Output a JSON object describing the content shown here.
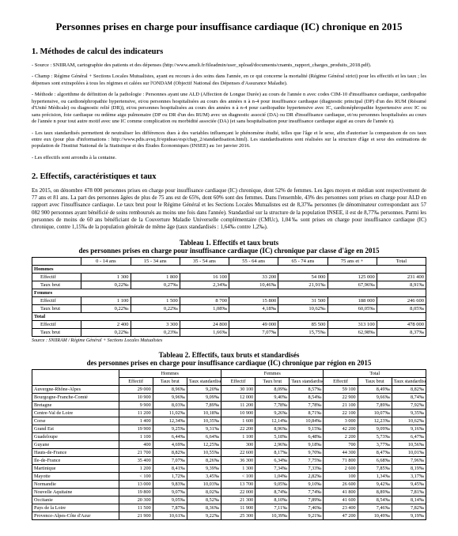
{
  "page_title": "Personnes prises en charge pour insuffisance cardiaque (IC) chronique en 2015",
  "sections": {
    "s1_title": "1. Méthodes de calcul des indicateurs",
    "s1_p1": "- Source : SNIIRAM, cartographie des patients et des dépenses (http://www.ameli.fr/fileadmin/user_upload/documents/cnamts_rapport_charges_produits_2018.pdf).",
    "s1_p2": "- Champ : Régime Général + Sections Locales Mutualistes, ayant eu recours à des soins dans l'année, en ce qui concerne la mortalité (Régime Général strict) pour les effectifs et les taux ; les dépenses sont extrapolées à tous les régimes et calées sur l'ONDAM (Objectif National des Dépenses d'Assurance Maladie).",
    "s1_p3": "- Méthode : algorithme de définition de la pathologie : Personnes ayant une ALD (Affection de Longue Durée) au cours de l'année n avec codes CIM-10 d'insuffisance cardiaque, cardiopathie hypertensive, ou cardionéphropathie hypertensive, et/ou personnes hospitalisées au cours des années n à n-4 pour insuffisance cardiaque (diagnostic principal (DP) d'un des RUM (Résumé d'Unité Médicale) ou diagnostic relié (DR)), et/ou personnes hospitalisées au cours des années n à n-4 pour cardiopathie hypertensive avec IC, cardionéphropathie hypertensive avec IC ou sans précision, foie cardiaque ou œdème aigu pulmonaire (DP ou DR d'un des RUM) avec un diagnostic associé (DA) ou DR d'insuffisance cardiaque, et/ou personnes hospitalisées au cours de l'année n pour tout autre motif avec une IC comme complication ou morbidité associée (DA) (et sans hospitalisation pour insuffisance cardiaque aiguë au cours de l'année n).",
    "s1_p4": "- Les taux standardisés permettent de neutraliser les différences dues à des variables influençant le phénomène étudié, telles que l'âge et le sexe, afin d'autoriser la comparaison de ces taux entre eux (pour plus d'informations : http://www.pdis.uvsq.fr/epideao/esp/chap_2/standardisation.html). Les standardisations sont réalisées sur la structure d'âge et sexe des estimations de population de l'Institut National de la Statistique et des Études Économiques (INSEE) au 1er janvier 2016.",
    "s1_p5": "- Les effectifs sont arrondis à la centaine.",
    "s2_title": "2. Effectifs, caractéristiques et taux",
    "s2_p1": "En 2015, on dénombre 478 000 personnes prises en charge pour insuffisance cardiaque (IC) chronique, dont 52% de femmes. Les âges moyen et médian sont respectivement de 77 ans et 81 ans. La part des personnes âgées de plus de 75 ans est de 65%, dont 60% sont des femmes. Dans l'ensemble, 43% des personnes sont prises en charge pour ALD en rapport avec l'insuffisance cardiaque. Le taux brut pour le Régime Général et les Sections Locales Mutualistes est de 8,37‰ personnes (le dénominateur correspondant aux 57 082 900 personnes ayant bénéficié de soins remboursés au moins une fois dans l'année). Standardisé sur la structure de la population INSEE, il est de 8,77‰ personnes. Parmi les personnes de moins de 60 ans bénéficiant de la Couverture Maladie Universelle complémentaire (CMUc), 1,04‰ sont prises en charge pour insuffisance cardiaque (IC) chronique, contre 1,15‰ de la population générale de même âge (taux standardisés : 1,64‰ contre 1,2‰).",
    "src_note": "Source : SNIIRAM / Régime Général + Sections Locales Mutualistes"
  },
  "table1": {
    "title": "Tableau 1. Effectifs et taux bruts",
    "subtitle": "des personnes prises en charge pour insuffisance cardiaque (IC) chronique par classe d'âge en 2015",
    "cols": [
      "",
      "0 - 14 ans",
      "15 - 34 ans",
      "35 - 54 ans",
      "55 - 64 ans",
      "65 - 74 ans",
      "75 ans et +",
      "Total"
    ],
    "groups": [
      {
        "label": "Hommes",
        "rows": [
          {
            "k": "Effectif",
            "v": [
              "1 300",
              "1 800",
              "16 100",
              "33 200",
              "54 000",
              "125 000",
              "231 400"
            ]
          },
          {
            "k": "Taux brut",
            "v": [
              "0,22‰",
              "0,27‰",
              "2,34‰",
              "10,46‰",
              "21,91‰",
              "67,96‰",
              "8,91‰"
            ]
          }
        ]
      },
      {
        "label": "Femmes",
        "rows": [
          {
            "k": "Effectif",
            "v": [
              "1 100",
              "1 500",
              "8 700",
              "15 800",
              "31 500",
              "188 000",
              "246 600"
            ]
          },
          {
            "k": "Taux brut",
            "v": [
              "0,22‰",
              "0,22‰",
              "1,08‰",
              "4,18‰",
              "10,62‰",
              "60,05‰",
              "8,05‰"
            ]
          }
        ]
      },
      {
        "label": "Total",
        "rows": [
          {
            "k": "Effectif",
            "v": [
              "2 400",
              "3 300",
              "24 800",
              "49 000",
              "85 500",
              "313 100",
              "478 000"
            ]
          },
          {
            "k": "Taux brut",
            "v": [
              "0,22‰",
              "0,23‰",
              "1,66‰",
              "7,07‰",
              "15,75‰",
              "62,98‰",
              "8,37‰"
            ]
          }
        ]
      }
    ]
  },
  "table2": {
    "title": "Tableau 2. Effectifs, taux bruts et standardisés",
    "subtitle": "des personnes prises en charge pour insuffisance cardiaque (IC) chronique par région en 2015",
    "head_top": [
      "",
      "Hommes",
      "Femmes",
      "Total"
    ],
    "head_sub": [
      "",
      "Effectif",
      "Taux brut",
      "Taux standardisé",
      "Effectif",
      "Taux brut",
      "Taux standardisé",
      "Effectif",
      "Taux brut",
      "Taux standardisé"
    ],
    "rows": [
      [
        "Auvergne-Rhône-Alpes",
        "29 000",
        "8,96‰",
        "9,20‰",
        "30 100",
        "8,09‰",
        "8,57‰",
        "59 100",
        "8,49‰",
        "8,82‰"
      ],
      [
        "Bourgogne-Franche-Comté",
        "10 900",
        "9,96‰",
        "9,09‰",
        "12 000",
        "9,40‰",
        "8,54‰",
        "22 900",
        "9,66‰",
        "8,74‰"
      ],
      [
        "Bretagne",
        "9 900",
        "8,03‰",
        "7,89‰",
        "11 200",
        "7,78‰",
        "7,78‰",
        "21 100",
        "7,89‰",
        "7,92‰"
      ],
      [
        "Centre-Val de Loire",
        "11 200",
        "11,02‰",
        "10,18‰",
        "10 900",
        "9,26‰",
        "8,71‰",
        "22 100",
        "10,07‰",
        "9,35‰"
      ],
      [
        "Corse",
        "1 400",
        "12,34‰",
        "10,35‰",
        "1 600",
        "12,14‰",
        "10,84‰",
        "3 000",
        "12,23‰",
        "10,62‰"
      ],
      [
        "Grand Est",
        "19 900",
        "9,25‰",
        "9,31‰",
        "22 200",
        "8,96‰",
        "9,15‰",
        "42 200",
        "9,09‰",
        "9,16‰"
      ],
      [
        "Guadeloupe",
        "1 100",
        "6,44‰",
        "6,64‰",
        "1 100",
        "5,18‰",
        "6,48‰",
        "2 200",
        "5,73‰",
        "6,47‰"
      ],
      [
        "Guyane",
        "400",
        "4,69‰",
        "12,25‰",
        "300",
        "2,96‰",
        "9,18‰",
        "700",
        "3,77‰",
        "10,56‰"
      ],
      [
        "Hauts-de-France",
        "21 700",
        "8,82‰",
        "10,55‰",
        "22 600",
        "8,17‰",
        "9,70‰",
        "44 300",
        "8,47‰",
        "10,01‰"
      ],
      [
        "Ile-de-France",
        "35 400",
        "7,07‰",
        "8,26‰",
        "36 300",
        "6,34‰",
        "7,75‰",
        "71 800",
        "6,68‰",
        "7,96‰"
      ],
      [
        "Martinique",
        "1 200",
        "8,41‰",
        "9,39‰",
        "1 300",
        "7,34‰",
        "7,33‰",
        "2 600",
        "7,85‰",
        "8,19‰"
      ],
      [
        "Mayotte",
        "< 100",
        "1,72‰",
        "3,45‰",
        "< 100",
        "1,04‰",
        "2,82‰",
        "100",
        "1,34‰",
        "3,17‰"
      ],
      [
        "Normandie",
        "13 000",
        "9,83‰",
        "10,03‰",
        "13 700",
        "9,05‰",
        "9,10‰",
        "26 600",
        "9,42‰",
        "9,45‰"
      ],
      [
        "Nouvelle Aquitaine",
        "19 800",
        "9,07‰",
        "8,02‰",
        "22 000",
        "8,74‰",
        "7,74‰",
        "41 800",
        "8,89‰",
        "7,81‰"
      ],
      [
        "Occitanie",
        "20 300",
        "9,05‰",
        "8,52‰",
        "21 300",
        "8,10‰",
        "7,89‰",
        "41 600",
        "8,54‰",
        "8,14‰"
      ],
      [
        "Pays de la Loire",
        "11 500",
        "7,87‰",
        "8,36‰",
        "11 900",
        "7,11‰",
        "7,46‰",
        "23 400",
        "7,46‰",
        "7,82‰"
      ],
      [
        "Provence-Alpes-Côte d'Azur",
        "21 900",
        "10,61‰",
        "9,22‰",
        "25 300",
        "10,39‰",
        "9,21‰",
        "47 200",
        "10,49‰",
        "9,19‰"
      ]
    ]
  }
}
